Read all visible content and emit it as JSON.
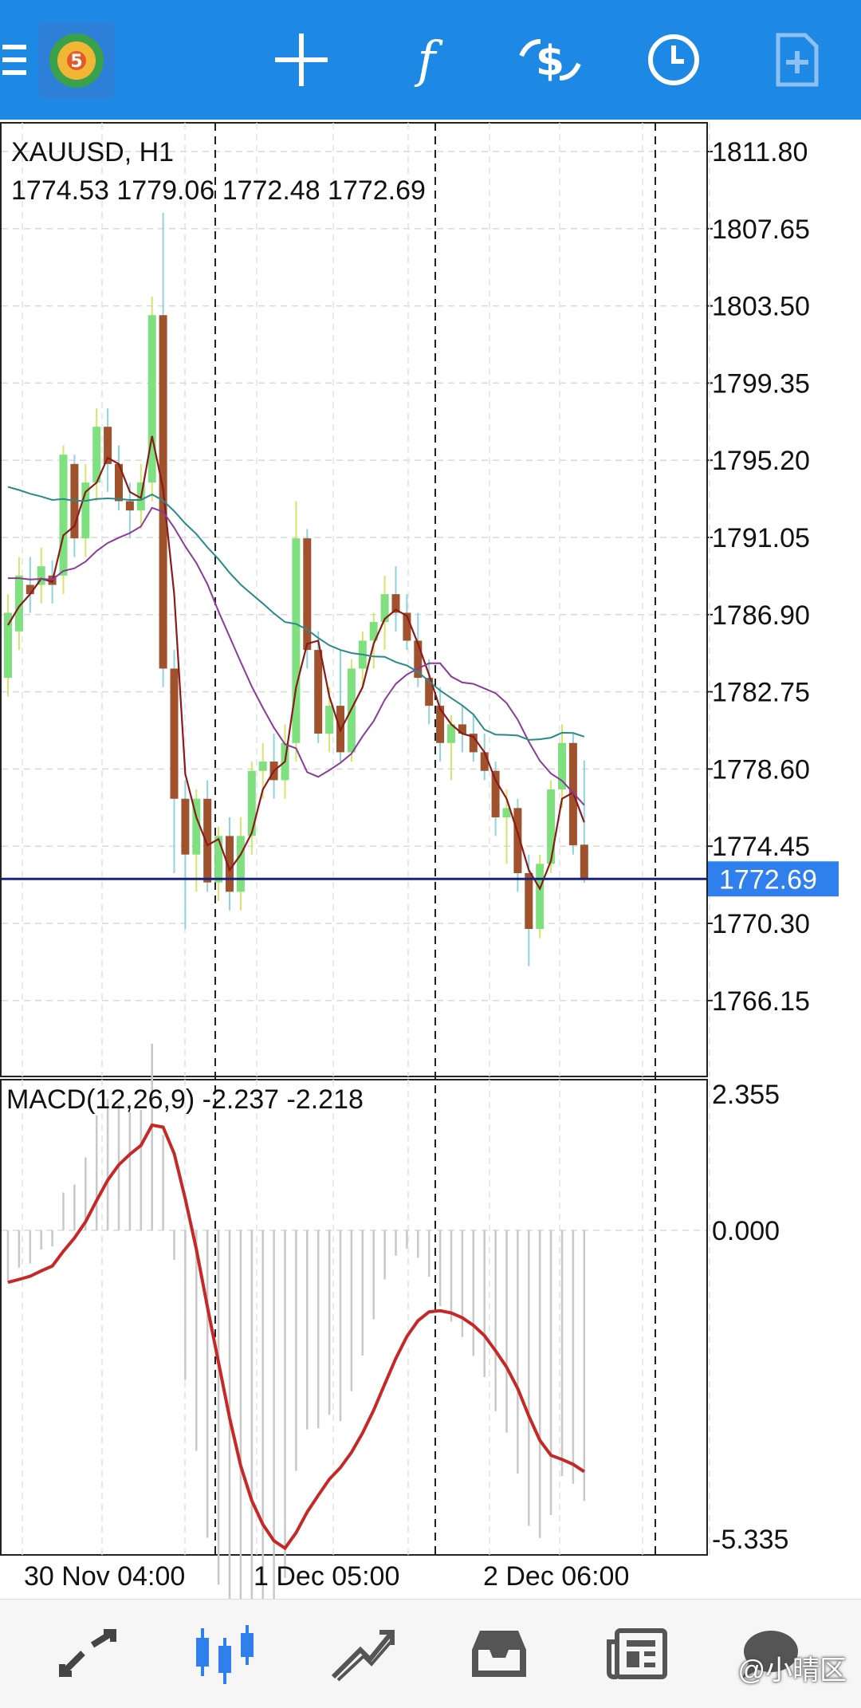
{
  "toolbar": {
    "icons": [
      "menu-icon",
      "app-logo-icon",
      "crosshair-icon",
      "indicators-icon",
      "symbols-icon",
      "timeframe-icon",
      "new-order-icon"
    ]
  },
  "chart": {
    "symbol_line": "XAUUSD, H1",
    "ohlc_line": "1774.53 1779.06 1772.48 1772.69",
    "current_price": "1772.69",
    "price_ticks": [
      "1811.80",
      "1807.65",
      "1803.50",
      "1799.35",
      "1795.20",
      "1791.05",
      "1786.90",
      "1782.75",
      "1778.60",
      "1774.45",
      "1770.30",
      "1766.15"
    ],
    "macd_label": "MACD(12,26,9) -2.237 -2.218",
    "macd_ticks": [
      "2.355",
      "0.000",
      "-5.335"
    ],
    "time_labels": [
      "30 Nov 04:00",
      "1 Dec 05:00",
      "2 Dec 06:00"
    ],
    "colors": {
      "bull": "#7ee07e",
      "bear": "#a0522d",
      "ma_fast": "#8b1a1a",
      "ma_mid": "#8a3a9a",
      "ma_slow": "#2a8a8a",
      "macd_signal": "#c62828",
      "price_line": "#1a237e",
      "price_tag": "#2f80ed"
    }
  },
  "bottom_nav": {
    "items": [
      "quotes-icon",
      "chart-icon",
      "trade-icon",
      "history-icon",
      "news-icon",
      "messages-icon"
    ]
  },
  "watermark": "@小晴区",
  "chart_data": {
    "type": "candlestick",
    "title": "XAUUSD, H1",
    "ylim": [
      1764.5,
      1813.5
    ],
    "x": [
      "30 Nov 04:00",
      "1 Dec 05:00",
      "2 Dec 06:00"
    ],
    "ohlc": [
      [
        1783.5,
        1788.0,
        1782.5,
        1787.0
      ],
      [
        1786.0,
        1790.0,
        1785.0,
        1789.0
      ],
      [
        1788.5,
        1790.0,
        1787.0,
        1788.0
      ],
      [
        1788.5,
        1790.5,
        1787.5,
        1789.5
      ],
      [
        1789.0,
        1789.8,
        1787.5,
        1788.5
      ],
      [
        1789.0,
        1796.0,
        1788.0,
        1795.5
      ],
      [
        1795.0,
        1795.5,
        1790.0,
        1791.0
      ],
      [
        1791.0,
        1795.0,
        1790.0,
        1794.0
      ],
      [
        1794.0,
        1798.0,
        1793.0,
        1797.0
      ],
      [
        1797.0,
        1798.0,
        1793.5,
        1795.0
      ],
      [
        1795.0,
        1796.0,
        1792.5,
        1793.0
      ],
      [
        1793.0,
        1794.0,
        1791.0,
        1792.5
      ],
      [
        1792.5,
        1795.0,
        1791.5,
        1794.0
      ],
      [
        1794.0,
        1804.0,
        1793.0,
        1803.0
      ],
      [
        1803.0,
        1808.5,
        1783.0,
        1784.0
      ],
      [
        1784.0,
        1785.0,
        1773.0,
        1777.0
      ],
      [
        1777.0,
        1778.0,
        1770.0,
        1774.0
      ],
      [
        1774.0,
        1777.5,
        1772.0,
        1777.0
      ],
      [
        1777.0,
        1778.0,
        1772.0,
        1772.5
      ],
      [
        1772.5,
        1775.5,
        1771.5,
        1775.0
      ],
      [
        1775.0,
        1776.0,
        1771.0,
        1772.0
      ],
      [
        1772.0,
        1776.0,
        1771.0,
        1775.0
      ],
      [
        1775.0,
        1779.0,
        1774.0,
        1778.5
      ],
      [
        1778.5,
        1780.0,
        1777.0,
        1779.0
      ],
      [
        1779.0,
        1780.5,
        1777.0,
        1778.0
      ],
      [
        1778.0,
        1781.0,
        1777.0,
        1780.0
      ],
      [
        1780.0,
        1793.0,
        1779.0,
        1791.0
      ],
      [
        1791.0,
        1791.5,
        1784.0,
        1785.0
      ],
      [
        1785.0,
        1786.0,
        1780.0,
        1780.5
      ],
      [
        1780.5,
        1783.0,
        1779.5,
        1782.0
      ],
      [
        1782.0,
        1785.0,
        1779.0,
        1779.5
      ],
      [
        1779.5,
        1784.5,
        1779.0,
        1784.0
      ],
      [
        1784.0,
        1786.0,
        1783.0,
        1785.5
      ],
      [
        1785.5,
        1787.0,
        1784.0,
        1786.5
      ],
      [
        1786.5,
        1789.0,
        1785.0,
        1788.0
      ],
      [
        1788.0,
        1789.5,
        1786.0,
        1787.0
      ],
      [
        1787.0,
        1788.0,
        1785.0,
        1785.5
      ],
      [
        1785.5,
        1787.0,
        1783.0,
        1783.5
      ],
      [
        1783.5,
        1784.5,
        1781.0,
        1782.0
      ],
      [
        1782.0,
        1783.0,
        1779.0,
        1780.0
      ],
      [
        1780.0,
        1781.5,
        1778.0,
        1781.0
      ],
      [
        1781.0,
        1782.0,
        1779.5,
        1780.5
      ],
      [
        1780.5,
        1781.5,
        1779.0,
        1779.5
      ],
      [
        1779.5,
        1780.5,
        1778.0,
        1778.5
      ],
      [
        1778.5,
        1779.0,
        1775.0,
        1776.0
      ],
      [
        1776.0,
        1777.5,
        1773.5,
        1776.5
      ],
      [
        1776.5,
        1777.0,
        1772.0,
        1773.0
      ],
      [
        1773.0,
        1774.0,
        1768.0,
        1770.0
      ],
      [
        1770.0,
        1774.0,
        1769.5,
        1773.5
      ],
      [
        1773.5,
        1778.0,
        1773.0,
        1777.5
      ],
      [
        1777.5,
        1781.0,
        1776.5,
        1780.0
      ],
      [
        1780.0,
        1780.5,
        1774.0,
        1774.5
      ],
      [
        1774.53,
        1779.06,
        1772.48,
        1772.69
      ]
    ],
    "macd_histogram_range": [
      -5.335,
      2.355
    ]
  }
}
